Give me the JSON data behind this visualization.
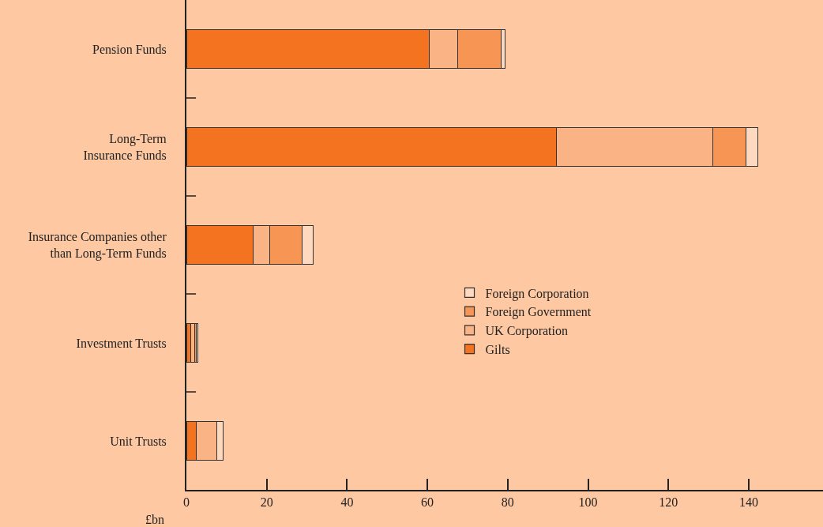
{
  "chart_data": {
    "type": "bar",
    "orientation": "horizontal",
    "stacked": true,
    "categories": [
      "Pension Funds",
      "Long-Term\nInsurance Funds",
      "Insurance Companies other\nthan Long-Term Funds",
      "Investment Trusts",
      "Unit Trusts"
    ],
    "series": [
      {
        "name": "Gilts",
        "color": "#f47321",
        "values": [
          60.4,
          92.1,
          16.6,
          1.1,
          2.4
        ]
      },
      {
        "name": "UK Corporation",
        "color": "#f9b384",
        "values": [
          7.2,
          38.9,
          4.1,
          0.9,
          5.2
        ]
      },
      {
        "name": "Foreign Government",
        "color": "#f79554",
        "values": [
          10.7,
          8.3,
          8.1,
          0.4,
          0
        ]
      },
      {
        "name": "Foreign Corporation",
        "color": "#fdd9bf",
        "values": [
          1.1,
          2.9,
          2.8,
          0.5,
          1.5
        ]
      }
    ],
    "xlabel": "£bn",
    "xlim": [
      0,
      158.5
    ],
    "xticks": [
      0,
      20,
      40,
      60,
      80,
      100,
      120,
      140
    ],
    "grid": false,
    "legend": "right"
  }
}
